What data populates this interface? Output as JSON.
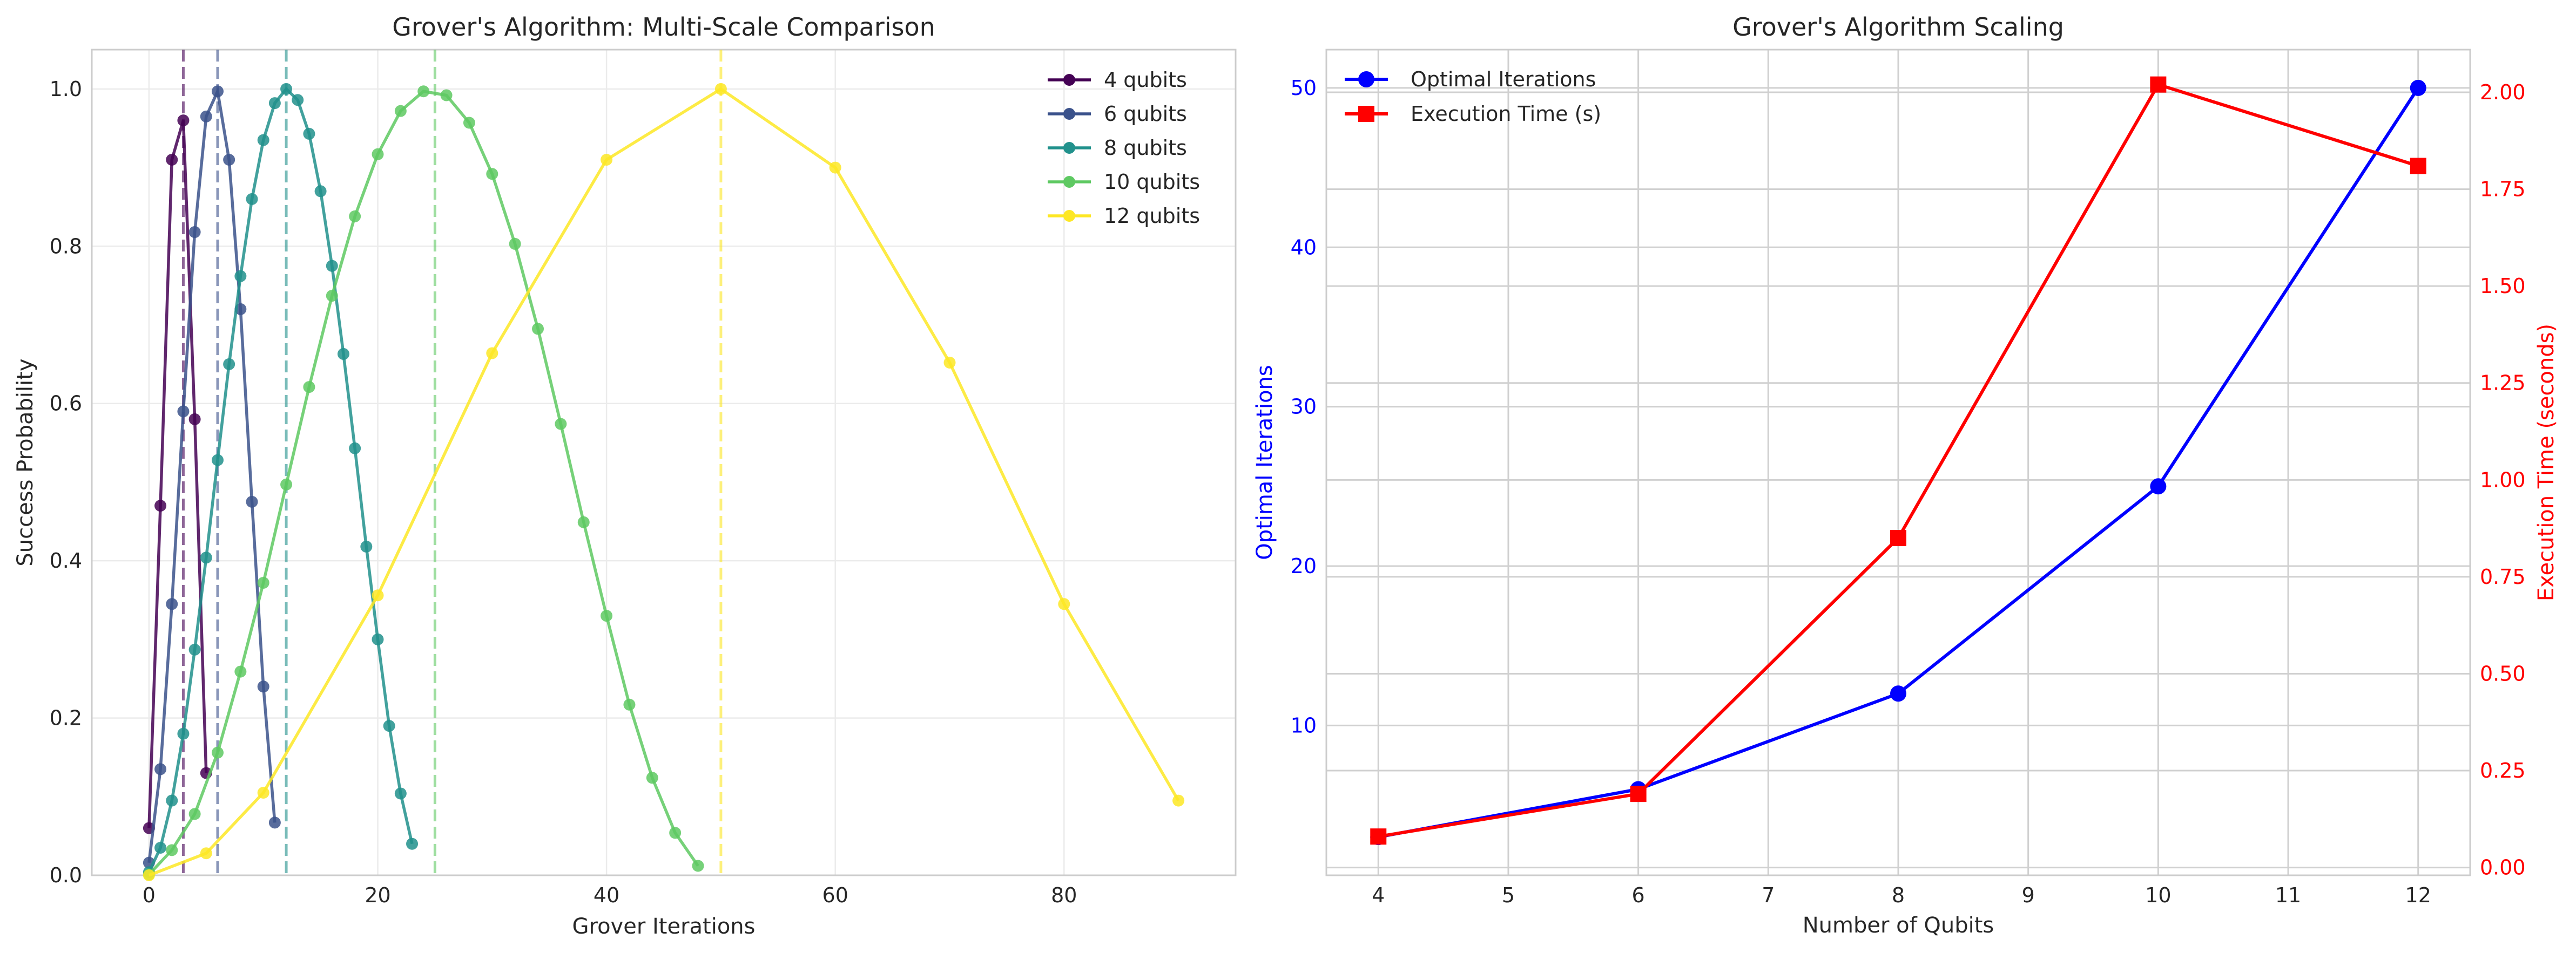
{
  "chart_data": [
    {
      "type": "line",
      "title": "Grover's Algorithm: Multi-Scale Comparison",
      "xlabel": "Grover Iterations",
      "ylabel": "Success Probability",
      "xlim": [
        -5,
        95
      ],
      "ylim": [
        0,
        1.05
      ],
      "xticks": [
        0,
        20,
        40,
        60,
        80
      ],
      "yticks": [
        0.0,
        0.2,
        0.4,
        0.6,
        0.8,
        1.0
      ],
      "grid": true,
      "legend_position": "top-right",
      "series": [
        {
          "name": "4 qubits",
          "color": "#440154",
          "optimal_x": 3,
          "x": [
            0,
            1,
            2,
            3,
            4,
            5
          ],
          "y": [
            0.06,
            0.47,
            0.91,
            0.96,
            0.58,
            0.13
          ]
        },
        {
          "name": "6 qubits",
          "color": "#3b528b",
          "optimal_x": 6,
          "x": [
            0,
            1,
            2,
            3,
            4,
            5,
            6,
            7,
            8,
            9,
            10,
            11
          ],
          "y": [
            0.016,
            0.135,
            0.345,
            0.59,
            0.818,
            0.965,
            0.997,
            0.91,
            0.72,
            0.475,
            0.24,
            0.067
          ]
        },
        {
          "name": "8 qubits",
          "color": "#21918c",
          "optimal_x": 12,
          "x": [
            0,
            1,
            2,
            3,
            4,
            5,
            6,
            7,
            8,
            9,
            10,
            11,
            12,
            13,
            14,
            15,
            16,
            17,
            18,
            19,
            20,
            21,
            22,
            23
          ],
          "y": [
            0.004,
            0.035,
            0.095,
            0.18,
            0.287,
            0.404,
            0.528,
            0.65,
            0.762,
            0.86,
            0.935,
            0.982,
            1.0,
            0.986,
            0.943,
            0.87,
            0.775,
            0.663,
            0.543,
            0.418,
            0.3,
            0.19,
            0.104,
            0.04
          ]
        },
        {
          "name": "10 qubits",
          "color": "#5ec962",
          "optimal_x": 25,
          "x": [
            0,
            2,
            4,
            6,
            8,
            10,
            12,
            14,
            16,
            18,
            20,
            22,
            24,
            26,
            28,
            30,
            32,
            34,
            36,
            38,
            40,
            42,
            44,
            46,
            48
          ],
          "y": [
            0.001,
            0.032,
            0.078,
            0.156,
            0.259,
            0.372,
            0.497,
            0.621,
            0.737,
            0.838,
            0.917,
            0.972,
            0.997,
            0.992,
            0.957,
            0.892,
            0.803,
            0.695,
            0.574,
            0.449,
            0.33,
            0.217,
            0.124,
            0.054,
            0.012
          ]
        },
        {
          "name": "12 qubits",
          "color": "#fde725",
          "optimal_x": 50,
          "x": [
            0,
            5,
            10,
            20,
            30,
            40,
            50,
            60,
            70,
            80,
            90
          ],
          "y": [
            0.0,
            0.028,
            0.105,
            0.356,
            0.664,
            0.91,
            1.0,
            0.9,
            0.652,
            0.345,
            0.095
          ]
        }
      ]
    },
    {
      "type": "line",
      "title": "Grover's Algorithm Scaling",
      "xlabel": "Number of Qubits",
      "ylabel": "Optimal Iterations",
      "y2label": "Execution Time (seconds)",
      "xlim": [
        3.6,
        12.4
      ],
      "ylim": [
        0.6,
        52.4
      ],
      "y2lim": [
        -0.02,
        2.11
      ],
      "xticks": [
        4,
        5,
        6,
        7,
        8,
        9,
        10,
        11,
        12
      ],
      "yticks": [
        10,
        20,
        30,
        40,
        50
      ],
      "y2ticks": [
        "0.00",
        "0.25",
        "0.50",
        "0.75",
        "1.00",
        "1.25",
        "1.50",
        "1.75",
        "2.00"
      ],
      "grid": true,
      "legend_position": "top-left",
      "x": [
        4,
        6,
        8,
        10,
        12
      ],
      "series": [
        {
          "name": "Optimal Iterations",
          "color": "#0000ff",
          "marker": "circle",
          "axis": "left",
          "values": [
            3,
            6,
            12,
            25,
            50
          ]
        },
        {
          "name": "Execution Time (s)",
          "color": "#ff0000",
          "marker": "square",
          "axis": "right",
          "values": [
            0.08,
            0.19,
            0.85,
            2.02,
            1.81
          ]
        }
      ]
    }
  ]
}
